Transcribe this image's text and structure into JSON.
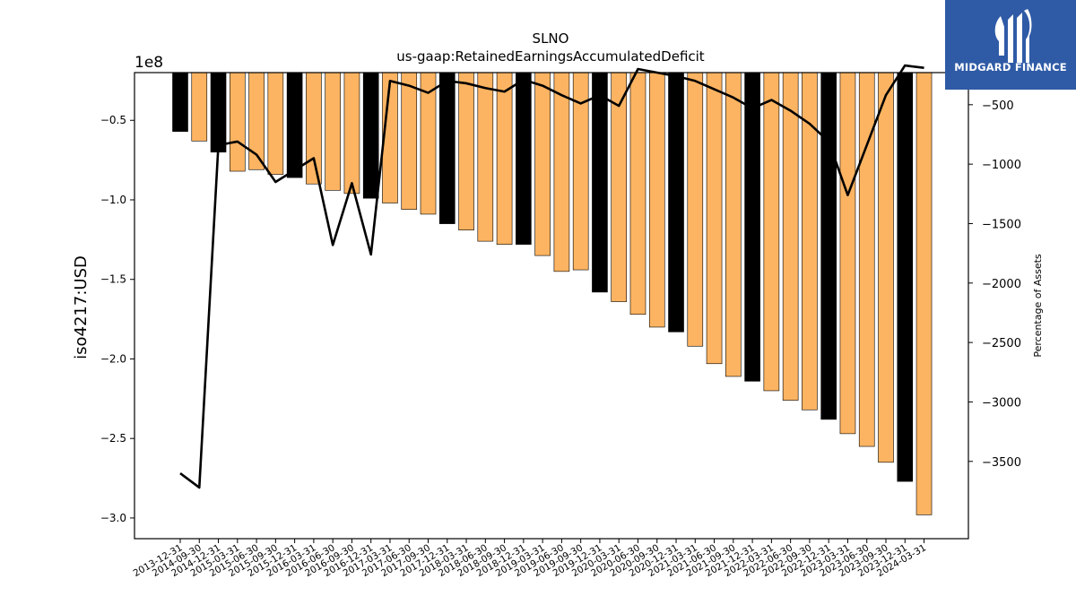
{
  "chart_data": {
    "type": "bar",
    "title": "SLNO",
    "subtitle": "us-gaap:RetainedEarningsAccumulatedDeficit",
    "ylabel": "iso4217:USD",
    "y2label": "Percentage of Assets",
    "y_multiplier_label": "1e8",
    "ylim": [
      -3.13,
      -0.2
    ],
    "y2lim": [
      -4150,
      -230
    ],
    "yticks": [
      -0.5,
      -1.0,
      -1.5,
      -2.0,
      -2.5,
      -3.0
    ],
    "ytick_labels": [
      "−0.5",
      "−1.0",
      "−1.5",
      "−2.0",
      "−2.5",
      "−3.0"
    ],
    "y2ticks": [
      -500,
      -1000,
      -1500,
      -2000,
      -2500,
      -3000,
      -3500
    ],
    "y2tick_labels": [
      "−500",
      "−1000",
      "−1500",
      "−2000",
      "−2500",
      "−3000",
      "−3500"
    ],
    "categories": [
      "2013-12-31",
      "2014-09-30",
      "2014-12-31",
      "2015-03-31",
      "2015-06-30",
      "2015-09-30",
      "2015-12-31",
      "2016-03-31",
      "2016-06-30",
      "2016-09-30",
      "2016-12-31",
      "2017-03-31",
      "2017-06-30",
      "2017-09-30",
      "2017-12-31",
      "2018-03-31",
      "2018-06-30",
      "2018-09-30",
      "2018-12-31",
      "2019-03-31",
      "2019-06-30",
      "2019-09-30",
      "2019-12-31",
      "2020-03-31",
      "2020-06-30",
      "2020-09-30",
      "2020-12-31",
      "2021-03-31",
      "2021-06-30",
      "2021-09-30",
      "2021-12-31",
      "2022-03-31",
      "2022-06-30",
      "2022-09-30",
      "2022-12-31",
      "2023-03-31",
      "2023-06-30",
      "2023-09-30",
      "2023-12-31",
      "2024-03-31"
    ],
    "series": [
      {
        "kind": "bar",
        "values": [
          -0.57,
          -0.63,
          -0.7,
          -0.82,
          -0.81,
          -0.84,
          -0.86,
          -0.9,
          -0.94,
          -0.96,
          -0.99,
          -1.02,
          -1.06,
          -1.09,
          -1.15,
          -1.19,
          -1.26,
          -1.28,
          -1.28,
          -1.35,
          -1.45,
          -1.44,
          -1.58,
          -1.64,
          -1.72,
          -1.8,
          -1.83,
          -1.92,
          -2.03,
          -2.11,
          -2.14,
          -2.2,
          -2.26,
          -2.32,
          -2.38,
          -2.47,
          -2.55,
          -2.65,
          -2.77,
          -2.98
        ],
        "annual_color": "#000000",
        "quarterly_color": "#fdb462",
        "annual_flags": [
          1,
          0,
          1,
          0,
          0,
          0,
          1,
          0,
          0,
          0,
          1,
          0,
          0,
          0,
          1,
          0,
          0,
          0,
          1,
          0,
          0,
          0,
          1,
          0,
          0,
          0,
          1,
          0,
          0,
          0,
          1,
          0,
          0,
          0,
          1,
          0,
          0,
          0,
          1,
          0
        ]
      },
      {
        "kind": "line",
        "axis": "right",
        "color": "#000000",
        "values": [
          -3600,
          -3720,
          -840,
          -810,
          -920,
          -1150,
          -1050,
          -950,
          -1680,
          -1160,
          -1760,
          -300,
          -340,
          -400,
          -300,
          -320,
          -360,
          -390,
          -290,
          -340,
          -420,
          -490,
          -420,
          -510,
          -200,
          -230,
          -260,
          -300,
          -370,
          -440,
          -530,
          -460,
          -550,
          -660,
          -810,
          -1260,
          -840,
          -420,
          -170,
          -190
        ]
      }
    ]
  },
  "logo": {
    "text": "MIDGARD FINANCE",
    "background": "#2f5ba6"
  }
}
